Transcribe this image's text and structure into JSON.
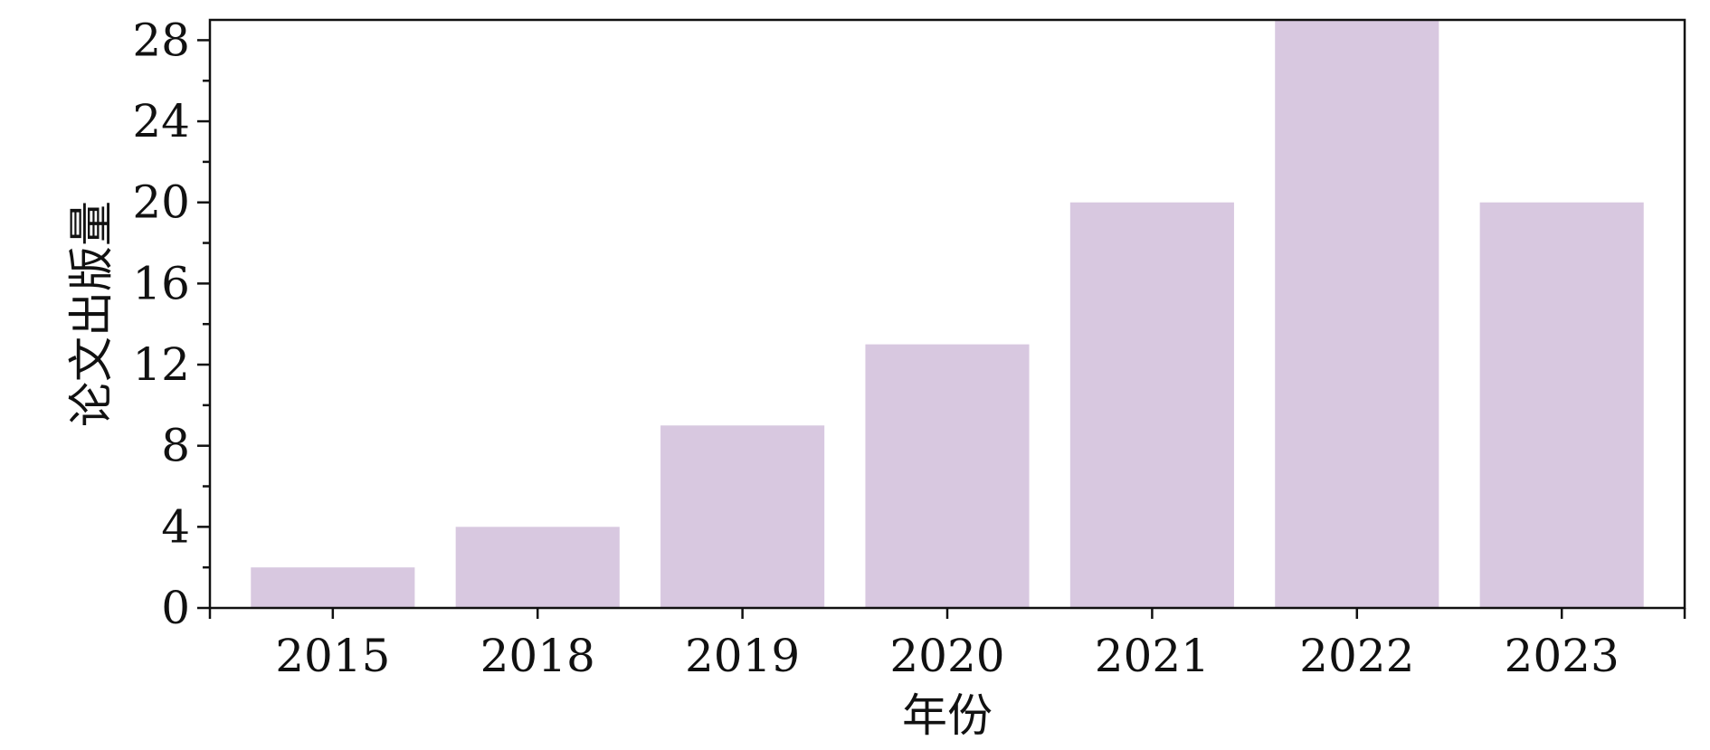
{
  "chart_data": {
    "type": "bar",
    "title": "",
    "xlabel": "年份",
    "ylabel": "论文出版量",
    "categories": [
      "2015",
      "2018",
      "2019",
      "2020",
      "2021",
      "2022",
      "2023"
    ],
    "values": [
      2,
      4,
      9,
      13,
      20,
      29,
      20
    ],
    "ylim": [
      0,
      29
    ],
    "yticks": [
      0,
      4,
      8,
      12,
      16,
      20,
      24,
      28
    ],
    "y_minor_step": 2,
    "bar_color": "#d8c8e0",
    "axis_color": "#111111",
    "grid": false,
    "legend": "none"
  }
}
